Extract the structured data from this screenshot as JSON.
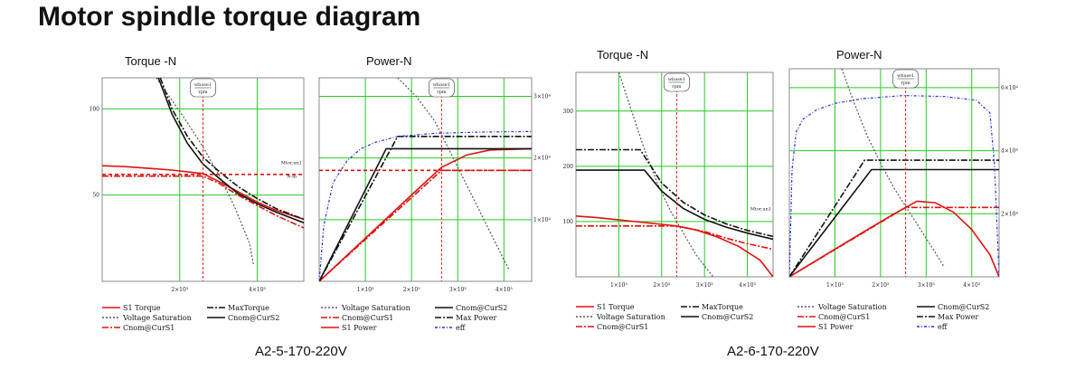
{
  "title": "Motor spindle torque diagram",
  "colors": {
    "grid": "#22cc22",
    "red": "#e01010",
    "black": "#111111",
    "dotted": "#555555",
    "blue": "#2233dd",
    "marker": "#e02020"
  },
  "models": [
    {
      "name": "A2-5-170-220V",
      "charts": [
        {
          "type": "line",
          "title": "Torque -N",
          "xlim": [
            0,
            5200
          ],
          "ylim": [
            0,
            118
          ],
          "x_ticks": [
            {
              "v": 2000,
              "label": "2×10³"
            },
            {
              "v": 4000,
              "label": "4×10³"
            }
          ],
          "y_ticks": [
            {
              "v": 50,
              "label": "50"
            },
            {
              "v": 100,
              "label": "100"
            }
          ],
          "annotations": {
            "marker_x": 2600,
            "marker_label_top": "wbase1",
            "marker_label_bottom": "rpm",
            "hline_label_top": "Mtor,un1",
            "hline_label_bottom": "N-m"
          },
          "series": [
            {
              "name": "S1 Torque",
              "color": "red",
              "dash": "",
              "x": [
                0,
                600,
                1200,
                1800,
                2400,
                2600,
                3000,
                3500,
                4000,
                4500,
                5200
              ],
              "y": [
                67,
                66.5,
                65.5,
                64.5,
                63,
                62.5,
                58,
                52,
                46,
                41,
                36
              ]
            },
            {
              "name": "Voltage Saturation",
              "color": "dotted",
              "dash": "2,2",
              "x": [
                1400,
                1800,
                2200,
                2600,
                3000,
                3400,
                3800,
                3900
              ],
              "y": [
                118,
                105,
                92,
                78,
                62,
                44,
                22,
                10
              ]
            },
            {
              "name": "Cnom@CurS1",
              "color": "red",
              "dash": "7,2,2,2",
              "x": [
                0,
                1000,
                2000,
                2600,
                3000,
                3500,
                4000,
                4500,
                5200
              ],
              "y": [
                61,
                61,
                61,
                61,
                57,
                50,
                44,
                38,
                31
              ]
            },
            {
              "name": "MaxTorque",
              "color": "black",
              "dash": "7,2,2,2",
              "x": [
                1500,
                1800,
                2200,
                2600,
                3000,
                3500,
                4000,
                4500,
                5200
              ],
              "y": [
                118,
                100,
                84,
                72,
                64,
                55,
                48,
                42,
                36
              ]
            },
            {
              "name": "Cnom@CurS2",
              "color": "black",
              "dash": "",
              "x": [
                1450,
                1800,
                2200,
                2600,
                3000,
                3500,
                4000,
                4500,
                5200
              ],
              "y": [
                118,
                97,
                80,
                68,
                60,
                51,
                45,
                40,
                34
              ]
            },
            {
              "name": "",
              "color": "red",
              "dash": "4,3",
              "x": [
                0,
                5200
              ],
              "y": [
                62,
                62
              ]
            }
          ],
          "legend": [
            {
              "series": "S1 Torque",
              "label": "S1 Torque"
            },
            {
              "series": "MaxTorque",
              "label": "MaxTorque"
            },
            {
              "series": "Voltage Saturation",
              "label": "Voltage Saturation"
            },
            {
              "series": "Cnom@CurS2",
              "label": "Cnom@CurS2"
            },
            {
              "series": "Cnom@CurS1",
              "label": "Cnom@CurS1"
            }
          ]
        },
        {
          "type": "line",
          "title": "Power-N",
          "xlim": [
            0,
            4600
          ],
          "ylim": [
            0,
            33000
          ],
          "x_ticks": [
            {
              "v": 1000,
              "label": "1×10³"
            },
            {
              "v": 2000,
              "label": "2×10³"
            },
            {
              "v": 3000,
              "label": "3×10³"
            },
            {
              "v": 4000,
              "label": "4×10³"
            }
          ],
          "y_ticks_right": [
            {
              "v": 10000,
              "label": "1×10⁴"
            },
            {
              "v": 20000,
              "label": "2×10⁴"
            },
            {
              "v": 30000,
              "label": "3×10⁴"
            }
          ],
          "annotations": {
            "marker_x": 2650,
            "marker_label_top": "wbase1",
            "marker_label_bottom": "rpm"
          },
          "series": [
            {
              "name": "Voltage Saturation",
              "color": "dotted",
              "dash": "2,2",
              "x": [
                1700,
                2100,
                2500,
                2900,
                3300,
                3700,
                4100
              ],
              "y": [
                33000,
                30000,
                26000,
                20000,
                14000,
                8000,
                2000
              ]
            },
            {
              "name": "Cnom@CurS1",
              "color": "red",
              "dash": "7,2,2,2",
              "x": [
                0,
                2650,
                4600
              ],
              "y": [
                0,
                18000,
                18000
              ]
            },
            {
              "name": "S1 Power",
              "color": "red",
              "dash": "",
              "x": [
                0,
                1000,
                2000,
                2650,
                3200,
                3700,
                4600
              ],
              "y": [
                0,
                7000,
                14000,
                18500,
                20500,
                21300,
                21500
              ]
            },
            {
              "name": "Cnom@CurS2",
              "color": "black",
              "dash": "",
              "x": [
                0,
                1450,
                4600
              ],
              "y": [
                0,
                21500,
                21500
              ]
            },
            {
              "name": "Max Power",
              "color": "black",
              "dash": "7,2,2,2",
              "x": [
                0,
                1700,
                4600
              ],
              "y": [
                0,
                23500,
                23500
              ]
            },
            {
              "name": "eff",
              "color": "blue",
              "dash": "3,2,1,2",
              "x": [
                0,
                100,
                300,
                600,
                900,
                1200,
                1700,
                2500,
                3500,
                4600
              ],
              "y": [
                0,
                9000,
                16000,
                19500,
                21500,
                22500,
                23500,
                24000,
                24200,
                24300
              ]
            },
            {
              "name": "",
              "color": "red",
              "dash": "4,3",
              "x": [
                0,
                4600
              ],
              "y": [
                18000,
                18000
              ]
            }
          ],
          "legend": [
            {
              "series": "Voltage Saturation",
              "label": "Voltage Saturation"
            },
            {
              "series": "Cnom@CurS2",
              "label": "Cnom@CurS2"
            },
            {
              "series": "Cnom@CurS1",
              "label": "Cnom@CurS1"
            },
            {
              "series": "Max Power",
              "label": "Max Power"
            },
            {
              "series": "S1 Power",
              "label": "S1 Power"
            },
            {
              "series": "eff",
              "label": "eff"
            }
          ]
        }
      ]
    },
    {
      "name": "A2-6-170-220V",
      "charts": [
        {
          "type": "line",
          "title": "Torque -N",
          "xlim": [
            0,
            4600
          ],
          "ylim": [
            0,
            370
          ],
          "x_ticks": [
            {
              "v": 1000,
              "label": "1×10³"
            },
            {
              "v": 2000,
              "label": "2×10³"
            },
            {
              "v": 3000,
              "label": "3×10³"
            },
            {
              "v": 4000,
              "label": "4×10³"
            }
          ],
          "y_ticks": [
            {
              "v": 100,
              "label": "100"
            },
            {
              "v": 200,
              "label": "200"
            },
            {
              "v": 300,
              "label": "300"
            }
          ],
          "annotations": {
            "marker_x": 2350,
            "marker_label_top": "wbase1",
            "marker_label_bottom": "rpm",
            "hline_label_top": "Mtor,un1"
          },
          "series": [
            {
              "name": "S1 Torque",
              "color": "red",
              "dash": "",
              "x": [
                0,
                500,
                1000,
                1500,
                2000,
                2350,
                2800,
                3300,
                3800,
                4300,
                4600
              ],
              "y": [
                110,
                107,
                103,
                99,
                95,
                92,
                85,
                72,
                55,
                30,
                0
              ]
            },
            {
              "name": "Voltage Saturation",
              "color": "dotted",
              "dash": "2,2",
              "x": [
                1000,
                1300,
                1600,
                1900,
                2200,
                2500,
                2800,
                3200
              ],
              "y": [
                370,
                300,
                230,
                170,
                120,
                80,
                40,
                0
              ]
            },
            {
              "name": "Cnom@CurS1",
              "color": "red",
              "dash": "7,2,2,2",
              "x": [
                0,
                1000,
                2000,
                2350,
                3000,
                3500,
                4000,
                4600
              ],
              "y": [
                92,
                92,
                92,
                92,
                82,
                70,
                60,
                50
              ]
            },
            {
              "name": "MaxTorque",
              "color": "black",
              "dash": "7,2,2,2",
              "x": [
                0,
                1500,
                2000,
                2500,
                3000,
                3500,
                4000,
                4600
              ],
              "y": [
                230,
                230,
                170,
                135,
                112,
                96,
                84,
                73
              ]
            },
            {
              "name": "Cnom@CurS2",
              "color": "black",
              "dash": "",
              "x": [
                0,
                1600,
                2000,
                2500,
                3000,
                3500,
                4000,
                4600
              ],
              "y": [
                193,
                193,
                155,
                124,
                104,
                90,
                79,
                68
              ]
            }
          ],
          "legend": [
            {
              "series": "S1 Torque",
              "label": "S1 Torque"
            },
            {
              "series": "MaxTorque",
              "label": "MaxTorque"
            },
            {
              "series": "Voltage Saturation",
              "label": "Voltage Saturation"
            },
            {
              "series": "Cnom@CurS2",
              "label": "Cnom@CurS2"
            },
            {
              "series": "Cnom@CurS1",
              "label": "Cnom@CurS1"
            }
          ]
        },
        {
          "type": "line",
          "title": "Power-N",
          "xlim": [
            0,
            4600
          ],
          "ylim": [
            0,
            66000
          ],
          "x_ticks": [
            {
              "v": 1000,
              "label": "1×10³"
            },
            {
              "v": 2000,
              "label": "2×10³"
            },
            {
              "v": 3000,
              "label": "3×10³"
            },
            {
              "v": 4000,
              "label": "4×10³"
            }
          ],
          "y_ticks_right": [
            {
              "v": 20000,
              "label": "2×10⁴"
            },
            {
              "v": 40000,
              "label": "4×10⁴"
            },
            {
              "v": 60000,
              "label": "6×10⁴"
            }
          ],
          "annotations": {
            "marker_x": 2550,
            "marker_label_top": "wbase1",
            "marker_label_bottom": "rpm"
          },
          "series": [
            {
              "name": "Voltage Saturation",
              "color": "dotted",
              "dash": "2,2",
              "x": [
                1150,
                1400,
                1700,
                2000,
                2300,
                2700,
                3100,
                3400
              ],
              "y": [
                66000,
                56000,
                45000,
                36000,
                28000,
                19000,
                10000,
                3000
              ]
            },
            {
              "name": "Cnom@CurS1",
              "color": "red",
              "dash": "7,2,2,2",
              "x": [
                0,
                2550,
                4600
              ],
              "y": [
                0,
                22000,
                22000
              ]
            },
            {
              "name": "S1 Power",
              "color": "red",
              "dash": "",
              "x": [
                0,
                800,
                1600,
                2300,
                2800,
                3200,
                3600,
                4000,
                4400,
                4600
              ],
              "y": [
                0,
                7000,
                14000,
                20000,
                24000,
                23500,
                20500,
                15000,
                7000,
                0
              ]
            },
            {
              "name": "Cnom@CurS2",
              "color": "black",
              "dash": "",
              "x": [
                0,
                1800,
                4600
              ],
              "y": [
                0,
                34000,
                34000
              ]
            },
            {
              "name": "Max Power",
              "color": "black",
              "dash": "7,2,2,2",
              "x": [
                0,
                1650,
                4600
              ],
              "y": [
                0,
                37000,
                37000
              ]
            },
            {
              "name": "eff",
              "color": "blue",
              "dash": "3,2,1,2",
              "x": [
                0,
                60,
                150,
                300,
                600,
                1000,
                1600,
                2500,
                3400,
                4100,
                4400,
                4500,
                4600
              ],
              "y": [
                0,
                34000,
                46000,
                50000,
                53000,
                55000,
                56500,
                57500,
                57200,
                56000,
                52000,
                35000,
                0
              ]
            }
          ],
          "legend": [
            {
              "series": "Voltage Saturation",
              "label": "Voltage Saturation"
            },
            {
              "series": "Cnom@CurS2",
              "label": "Cnom@CurS2"
            },
            {
              "series": "Cnom@CurS1",
              "label": "Cnom@CurS1"
            },
            {
              "series": "Max Power",
              "label": "Max Power"
            },
            {
              "series": "S1 Power",
              "label": "S1 Power"
            },
            {
              "series": "eff",
              "label": "eff"
            }
          ]
        }
      ]
    }
  ]
}
